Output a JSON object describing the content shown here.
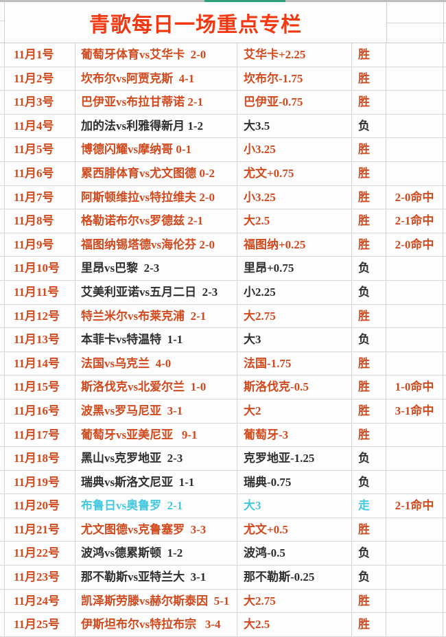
{
  "title": "青歌每日一场重点专栏",
  "colors": {
    "title_red": "#f23911",
    "red": "#d04a1e",
    "black": "#2f2f2f",
    "cyan": "#45c8de",
    "green_strip": "#2f9e74",
    "gridline": "#d8d8d8"
  },
  "table": {
    "rows": [
      {
        "date": "11月1号",
        "match": "葡萄牙体育vs艾华卡  2-0",
        "bet": "艾华卡+2.25",
        "result": "胜",
        "hit": "",
        "tone": "red"
      },
      {
        "date": "11月2号",
        "match": "坎布尔vs阿贾克斯  4-1",
        "bet": "坎布尔-1.75",
        "result": "胜",
        "hit": "",
        "tone": "red"
      },
      {
        "date": "11月3号",
        "match": "巴伊亚vs布拉甘蒂诺 2-1",
        "bet": "巴伊亚-0.75",
        "result": "胜",
        "hit": "",
        "tone": "red"
      },
      {
        "date": "11月4号",
        "match": "加的法vs利雅得新月 1-2",
        "bet": "大3.5",
        "result": "负",
        "hit": "",
        "tone": "black"
      },
      {
        "date": "11月5号",
        "match": "博德闪耀vs摩纳哥 0-1",
        "bet": "小3.25",
        "result": "胜",
        "hit": "",
        "tone": "red"
      },
      {
        "date": "11月6号",
        "match": "累西腓体育vs尤文图德 0-2",
        "bet": "尤文+0.75",
        "result": "胜",
        "hit": "",
        "tone": "red"
      },
      {
        "date": "11月7号",
        "match": "阿斯顿维拉vs特拉维夫 2-0",
        "bet": "小3.25",
        "result": "胜",
        "hit": "2-0命中",
        "tone": "red"
      },
      {
        "date": "11月8号",
        "match": "格勒诺布尔vs罗德兹 2-1",
        "bet": "大2.5",
        "result": "胜",
        "hit": "2-1命中",
        "tone": "red"
      },
      {
        "date": "11月9号",
        "match": "福图纳锡塔德vs海伦芬 2-0",
        "bet": "福图纳+0.25",
        "result": "胜",
        "hit": "2-0命中",
        "tone": "red"
      },
      {
        "date": "11月10号",
        "match": "里昂vs巴黎  2-3",
        "bet": "里昂+0.75",
        "result": "负",
        "hit": "",
        "tone": "black"
      },
      {
        "date": "11月11号",
        "match": "艾美利亚诺vs五月二日  2-3",
        "bet": "小2.25",
        "result": "负",
        "hit": "",
        "tone": "black"
      },
      {
        "date": "11月12号",
        "match": "特兰米尔vs布莱克浦  2-1",
        "bet": "大2.75",
        "result": "胜",
        "hit": "",
        "tone": "red"
      },
      {
        "date": "11月13号",
        "match": "本菲卡vs特温特  1-1",
        "bet": "大3",
        "result": "负",
        "hit": "",
        "tone": "black"
      },
      {
        "date": "11月14号",
        "match": "法国vs乌克兰  4-0",
        "bet": "法国-1.75",
        "result": "胜",
        "hit": "",
        "tone": "red"
      },
      {
        "date": "11月15号",
        "match": "斯洛伐克vs北爱尔兰  1-0",
        "bet": "斯洛伐克-0.5",
        "result": "胜",
        "hit": "1-0命中",
        "tone": "red"
      },
      {
        "date": "11月16号",
        "match": "波黑vs罗马尼亚  3-1",
        "bet": "大2",
        "result": "胜",
        "hit": "3-1命中",
        "tone": "red"
      },
      {
        "date": "11月17号",
        "match": "葡萄牙vs亚美尼亚   9-1",
        "bet": "葡萄牙-3",
        "result": "胜",
        "hit": "",
        "tone": "red"
      },
      {
        "date": "11月18号",
        "match": "黑山vs克罗地亚  2-3",
        "bet": "克罗地亚-1.25",
        "result": "负",
        "hit": "",
        "tone": "black"
      },
      {
        "date": "11月19号",
        "match": "瑞典vs斯洛文尼亚  1-1",
        "bet": "瑞典-0.75",
        "result": "负",
        "hit": "",
        "tone": "black"
      },
      {
        "date": "11月20号",
        "match": "布鲁日vs奥鲁罗  2-1",
        "bet": "大3",
        "result": "走",
        "hit": "2-1命中",
        "tone": "cyan"
      },
      {
        "date": "11月21号",
        "match": "尤文图德vs克鲁塞罗  3-3",
        "bet": "尤文+0.5",
        "result": "胜",
        "hit": "",
        "tone": "red"
      },
      {
        "date": "11月22号",
        "match": "波鸿vs德累斯顿  1-2",
        "bet": "波鸿-0.5",
        "result": "负",
        "hit": "",
        "tone": "black"
      },
      {
        "date": "11月23号",
        "match": "那不勒斯vs亚特兰大  3-1",
        "bet": "那不勒斯-0.25",
        "result": "负",
        "hit": "",
        "tone": "black"
      },
      {
        "date": "11月24号",
        "match": "凯泽斯劳滕vs赫尔斯泰因  5-1",
        "bet": "大2.75",
        "result": "胜",
        "hit": "",
        "tone": "red"
      },
      {
        "date": "11月25号",
        "match": "伊斯坦布尔vs特拉布宗   3-4",
        "bet": "大2.5",
        "result": "胜",
        "hit": "",
        "tone": "red"
      }
    ]
  }
}
